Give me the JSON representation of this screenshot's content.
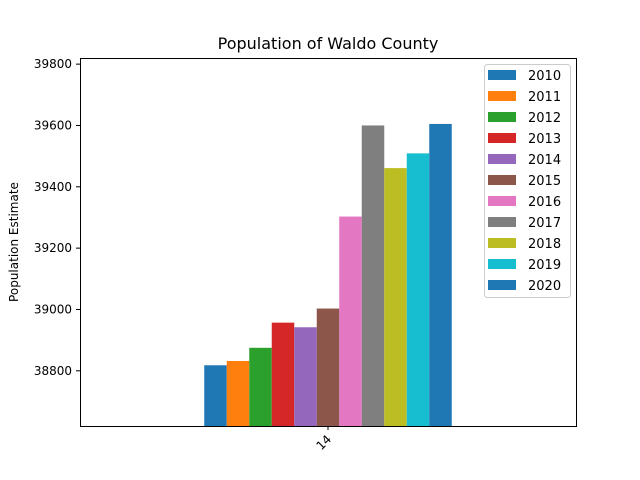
{
  "chart_data": {
    "type": "bar",
    "title": "Population of Waldo County",
    "xlabel": "",
    "ylabel": "Population Estimate",
    "categories": [
      "14"
    ],
    "ylim": [
      38620,
      39820
    ],
    "yticks": [
      38800,
      39000,
      39200,
      39400,
      39600,
      39800
    ],
    "grid": false,
    "legend_position": "top-right",
    "series": [
      {
        "name": "2010",
        "values": [
          38818
        ],
        "color": "#1f77b4"
      },
      {
        "name": "2011",
        "values": [
          38832
        ],
        "color": "#ff7f0e"
      },
      {
        "name": "2012",
        "values": [
          38875
        ],
        "color": "#2ca02c"
      },
      {
        "name": "2013",
        "values": [
          38957
        ],
        "color": "#d62728"
      },
      {
        "name": "2014",
        "values": [
          38942
        ],
        "color": "#9467bd"
      },
      {
        "name": "2015",
        "values": [
          39003
        ],
        "color": "#8c564b"
      },
      {
        "name": "2016",
        "values": [
          39303
        ],
        "color": "#e377c2"
      },
      {
        "name": "2017",
        "values": [
          39600
        ],
        "color": "#7f7f7f"
      },
      {
        "name": "2018",
        "values": [
          39461
        ],
        "color": "#bcbd22"
      },
      {
        "name": "2019",
        "values": [
          39509
        ],
        "color": "#17becf"
      },
      {
        "name": "2020",
        "values": [
          39605
        ],
        "color": "#1f77b4"
      }
    ]
  }
}
